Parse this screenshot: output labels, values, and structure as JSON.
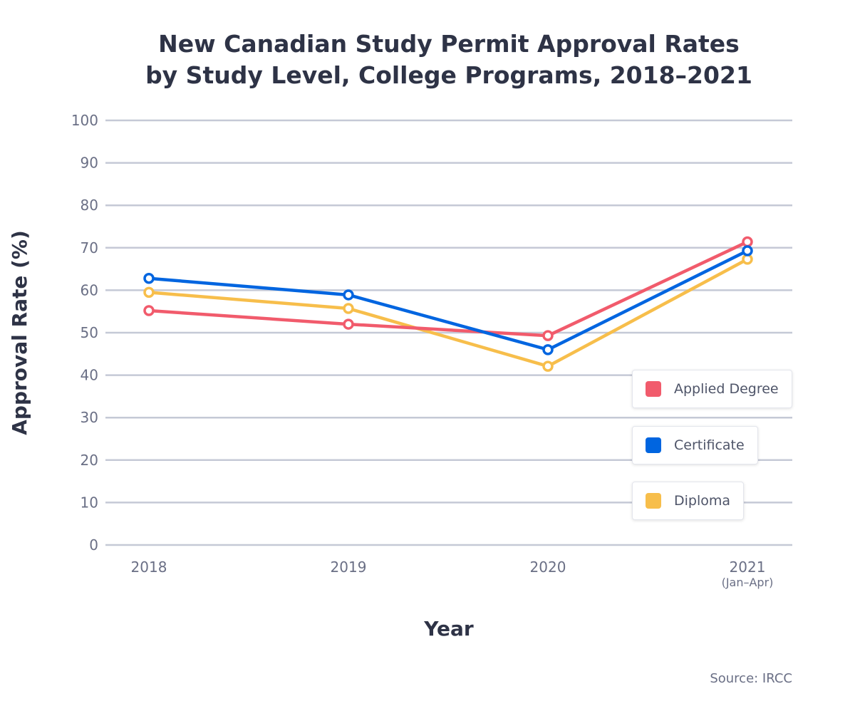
{
  "chart_data": {
    "type": "line",
    "title": "New Canadian Study Permit Approval Rates by Study Level, College Programs, 2018–2021",
    "title_lines": [
      "New Canadian Study Permit Approval Rates",
      "by Study Level, College Programs, 2018–2021"
    ],
    "xlabel": "Year",
    "ylabel": "Approval Rate (%)",
    "categories": [
      "2018",
      "2019",
      "2020",
      "2021"
    ],
    "category_sublabels": [
      "",
      "",
      "",
      "(Jan–Apr)"
    ],
    "ylim": [
      0,
      100
    ],
    "yticks": [
      0,
      10,
      20,
      30,
      40,
      50,
      60,
      70,
      80,
      90,
      100
    ],
    "grid": true,
    "legend_position": "bottom-right",
    "series": [
      {
        "name": "Applied Degree",
        "color": "#f15b6c",
        "values": [
          55.2,
          52.0,
          49.3,
          71.4
        ]
      },
      {
        "name": "Certificate",
        "color": "#0065e0",
        "values": [
          62.8,
          58.9,
          46.0,
          69.3
        ]
      },
      {
        "name": "Diploma",
        "color": "#f7be4b",
        "values": [
          59.5,
          55.7,
          42.1,
          67.3
        ]
      }
    ],
    "source": "Source: IRCC"
  }
}
